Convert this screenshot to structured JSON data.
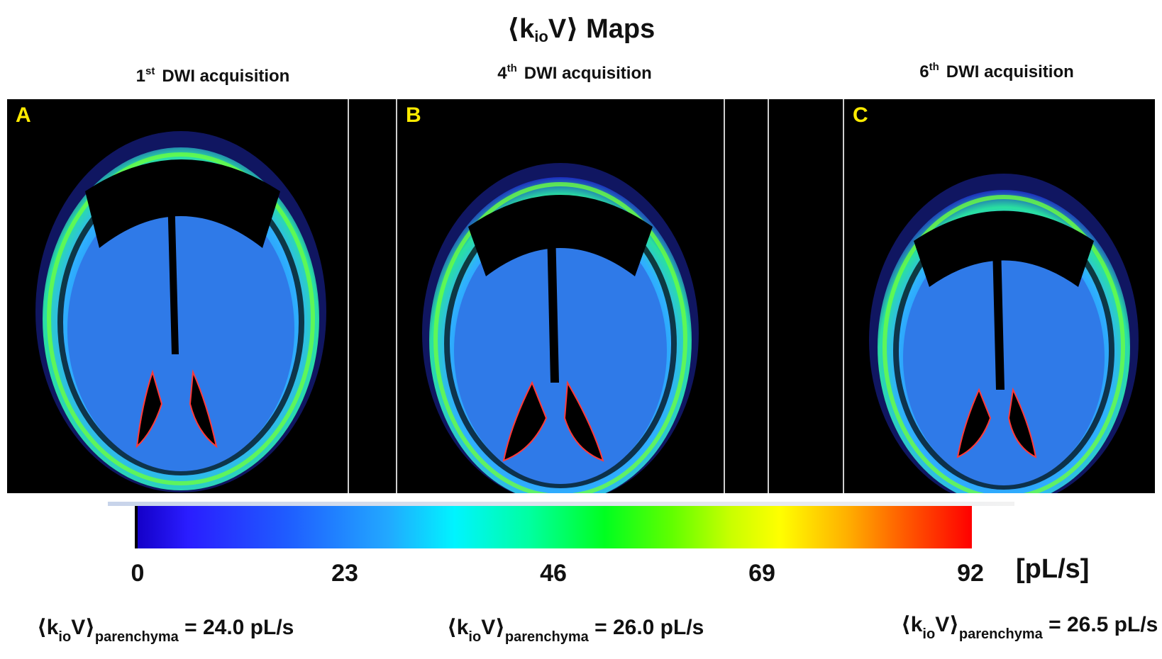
{
  "title": {
    "prefix": "⟨k",
    "sub": "io",
    "suffix": "V⟩ Maps"
  },
  "columns": [
    {
      "ordinal": "1",
      "ordinal_suffix": "st",
      "label": "DWI acquisition",
      "panel_letter": "A",
      "stat": {
        "prefix": "⟨k",
        "sub1": "io",
        "mid": "V⟩",
        "sub2": "parenchyma",
        "value": " = 24.0 pL/s"
      }
    },
    {
      "ordinal": "4",
      "ordinal_suffix": "th",
      "label": "DWI acquisition",
      "panel_letter": "B",
      "stat": {
        "prefix": "⟨k",
        "sub1": "io",
        "mid": "V⟩",
        "sub2": "parenchyma",
        "value": " = 26.0 pL/s"
      }
    },
    {
      "ordinal": "6",
      "ordinal_suffix": "th",
      "label": "DWI acquisition",
      "panel_letter": "C",
      "stat": {
        "prefix": "⟨k",
        "sub1": "io",
        "mid": "V⟩",
        "sub2": "parenchyma",
        "value": " = 26.5 pL/s"
      }
    }
  ],
  "colorbar": {
    "ticks": [
      "0",
      "23",
      "46",
      "69",
      "92"
    ],
    "unit": "[pL/s]",
    "colors": [
      "#1400c8",
      "#1f5dff",
      "#00f4ff",
      "#00ff20",
      "#ffff00",
      "#ff5a00",
      "#ff0000"
    ]
  }
}
